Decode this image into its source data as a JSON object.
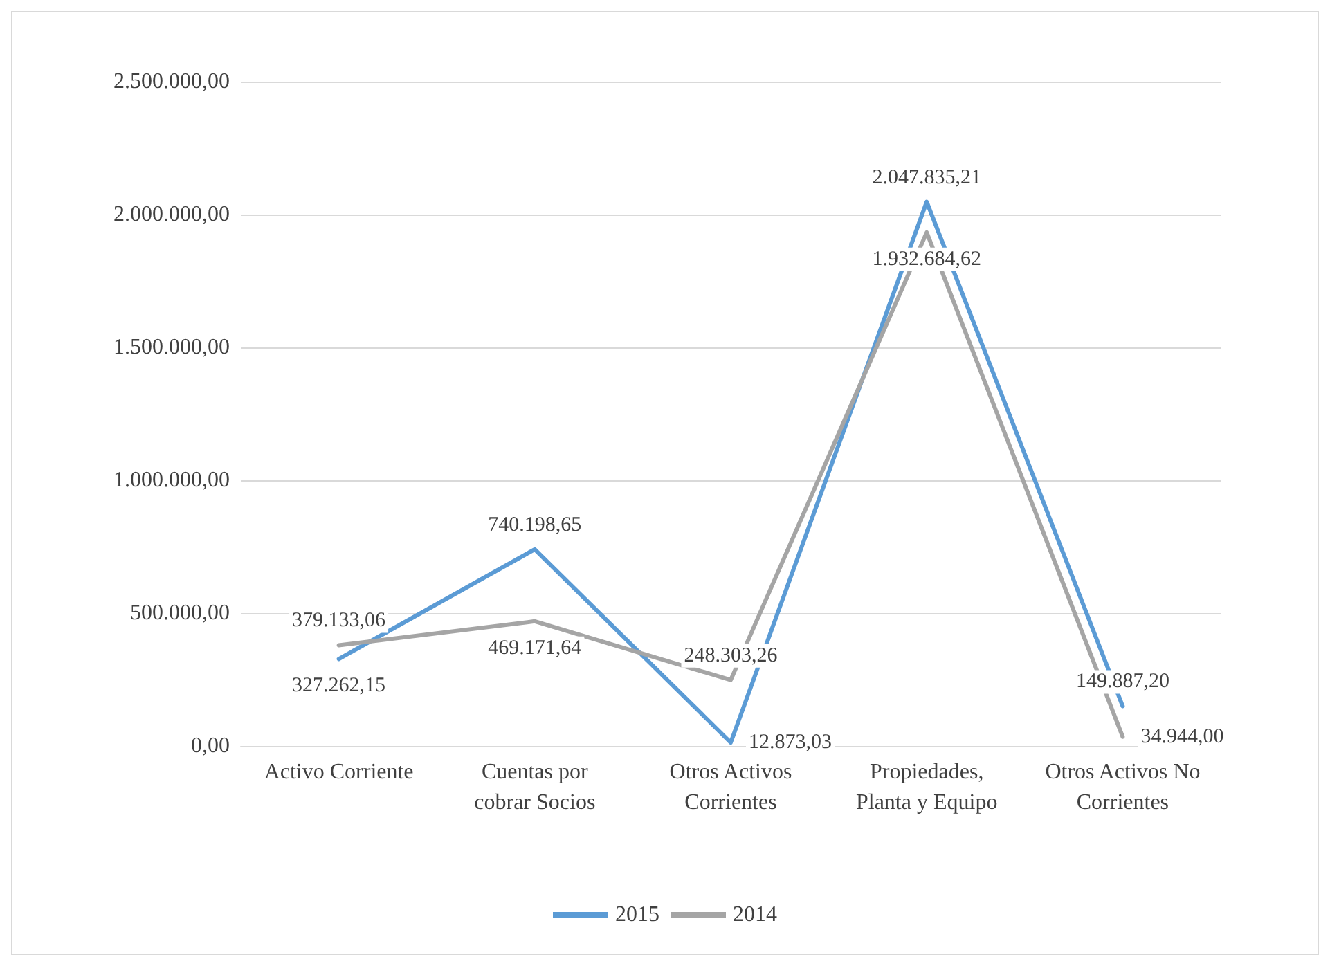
{
  "chart_data": {
    "type": "line",
    "categories": [
      "Activo Corriente",
      "Cuentas por\ncobrar Socios",
      "Otros Activos\nCorrientes",
      "Propiedades,\nPlanta y Equipo",
      "Otros Activos No\nCorrientes"
    ],
    "series": [
      {
        "name": "2015",
        "color": "#5b9bd5",
        "values": [
          327262.15,
          740198.65,
          12873.03,
          2047835.21,
          149887.2
        ],
        "value_labels": [
          "327.262,15",
          "740.198,65",
          "12.873,03",
          "2.047.835,21",
          "149.887,20"
        ]
      },
      {
        "name": "2014",
        "color": "#a5a5a5",
        "values": [
          379133.06,
          469171.64,
          248303.26,
          1932684.62,
          34944.0
        ],
        "value_labels": [
          "379.133,06",
          "469.171,64",
          "248.303,26",
          "1.932.684,62",
          "34.944,00"
        ]
      }
    ],
    "ylim": [
      0,
      2500000
    ],
    "yticks": [
      {
        "value": 0,
        "label": "0,00"
      },
      {
        "value": 500000,
        "label": "500.000,00"
      },
      {
        "value": 1000000,
        "label": "1.000.000,00"
      },
      {
        "value": 1500000,
        "label": "1.500.000,00"
      },
      {
        "value": 2000000,
        "label": "2.000.000,00"
      },
      {
        "value": 2500000,
        "label": "2.500.000,00"
      }
    ],
    "grid": "y",
    "legend": "bottom",
    "marker": "none",
    "line_style": "solid"
  }
}
